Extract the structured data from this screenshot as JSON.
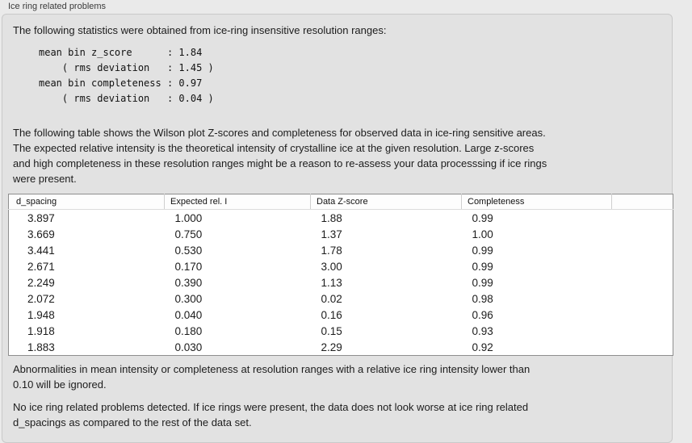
{
  "window": {
    "title": "Ice ring related problems"
  },
  "panel": {
    "intro": "The following statistics were obtained from ice-ring insensitive resolution ranges:",
    "stats_block": "mean bin z_score      : 1.84\n    ( rms deviation   : 1.45 )\nmean bin completeness : 0.97\n    ( rms deviation   : 0.04 )",
    "description": "The following table shows the Wilson plot Z-scores and completeness for observed data in ice-ring sensitive areas.\nThe expected relative intensity is the theoretical intensity of crystalline ice at the given resolution. Large z-scores\nand high completeness in these resolution ranges might be a reason to re-assess your data processsing if ice rings\nwere present.",
    "table": {
      "columns": [
        "d_spacing",
        "Expected rel. I",
        "Data Z-score",
        "Completeness",
        ""
      ],
      "rows": [
        [
          "3.897",
          "1.000",
          "1.88",
          "0.99"
        ],
        [
          "3.669",
          "0.750",
          "1.37",
          "1.00"
        ],
        [
          "3.441",
          "0.530",
          "1.78",
          "0.99"
        ],
        [
          "2.671",
          "0.170",
          "3.00",
          "0.99"
        ],
        [
          "2.249",
          "0.390",
          "1.13",
          "0.99"
        ],
        [
          "2.072",
          "0.300",
          "0.02",
          "0.98"
        ],
        [
          "1.948",
          "0.040",
          "0.16",
          "0.96"
        ],
        [
          "1.918",
          "0.180",
          "0.15",
          "0.93"
        ],
        [
          "1.883",
          "0.030",
          "2.29",
          "0.92"
        ]
      ]
    },
    "ignore_note": "Abnormalities in mean intensity or completeness at resolution ranges with a relative ice ring intensity lower than\n0.10 will be ignored.",
    "conclusion": "No ice ring related problems detected. If ice rings were present, the data does not look worse at ice ring related\nd_spacings as compared to the rest of the data set."
  },
  "colors": {
    "page_bg": "#eaeaea",
    "box_bg": "#e2e2e2",
    "box_border": "#c9c9c9",
    "table_bg": "#ffffff",
    "table_border": "#8e8e8e",
    "header_divider": "#cfcfcf",
    "text": "#1c1c1c"
  }
}
